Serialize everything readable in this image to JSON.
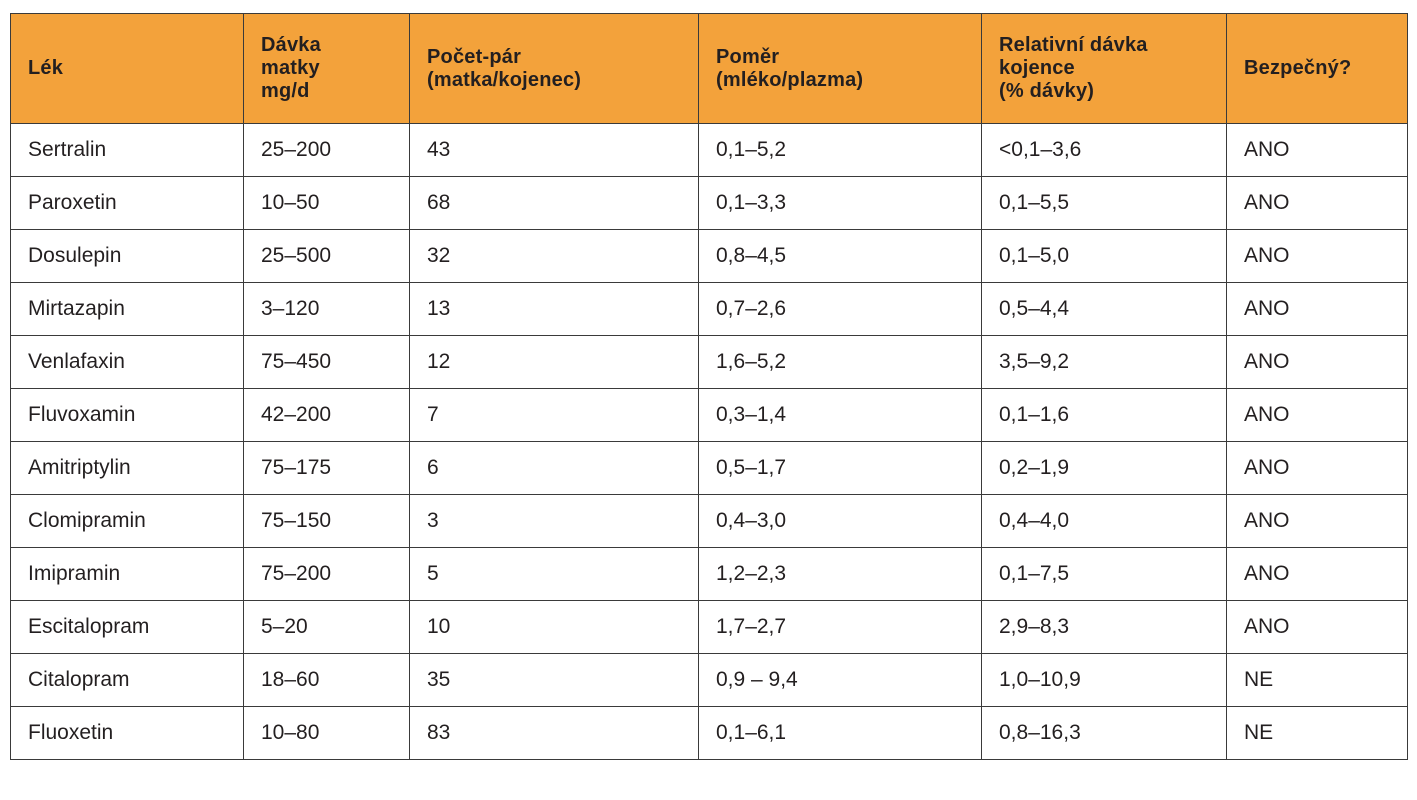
{
  "table": {
    "headers": [
      [
        "Lék"
      ],
      [
        "Dávka",
        "matky",
        "mg/d"
      ],
      [
        "Počet-pár",
        "(matka/kojenec)"
      ],
      [
        "Poměr",
        "(mléko/plazma)"
      ],
      [
        "Relativní dávka",
        "kojence",
        "(% dávky)"
      ],
      [
        "Bezpečný?"
      ]
    ],
    "rows": [
      [
        "Sertralin",
        "25–200",
        "43",
        "0,1–5,2",
        "<0,1–3,6",
        "ANO"
      ],
      [
        "Paroxetin",
        "10–50",
        "68",
        "0,1–3,3",
        "0,1–5,5",
        "ANO"
      ],
      [
        "Dosulepin",
        "25–500",
        "32",
        "0,8–4,5",
        "0,1–5,0",
        "ANO"
      ],
      [
        "Mirtazapin",
        "3–120",
        "13",
        "0,7–2,6",
        "0,5–4,4",
        "ANO"
      ],
      [
        "Venlafaxin",
        "75–450",
        "12",
        "1,6–5,2",
        "3,5–9,2",
        "ANO"
      ],
      [
        "Fluvoxamin",
        "42–200",
        "7",
        "0,3–1,4",
        "0,1–1,6",
        "ANO"
      ],
      [
        "Amitriptylin",
        "75–175",
        "6",
        "0,5–1,7",
        "0,2–1,9",
        "ANO"
      ],
      [
        "Clomipramin",
        "75–150",
        "3",
        "0,4–3,0",
        "0,4–4,0",
        "ANO"
      ],
      [
        "Imipramin",
        "75–200",
        "5",
        "1,2–2,3",
        "0,1–7,5",
        "ANO"
      ],
      [
        "Escitalopram",
        "5–20",
        "10",
        "1,7–2,7",
        "2,9–8,3",
        "ANO"
      ],
      [
        "Citalopram",
        "18–60",
        "35",
        "0,9 – 9,4",
        "1,0–10,9",
        "NE"
      ],
      [
        "Fluoxetin",
        "10–80",
        "83",
        "0,1–6,1",
        "0,8–16,3",
        "NE"
      ]
    ]
  },
  "colors": {
    "header_background": "#f3a23b",
    "border": "#3a3a3a",
    "text": "#231f20"
  }
}
